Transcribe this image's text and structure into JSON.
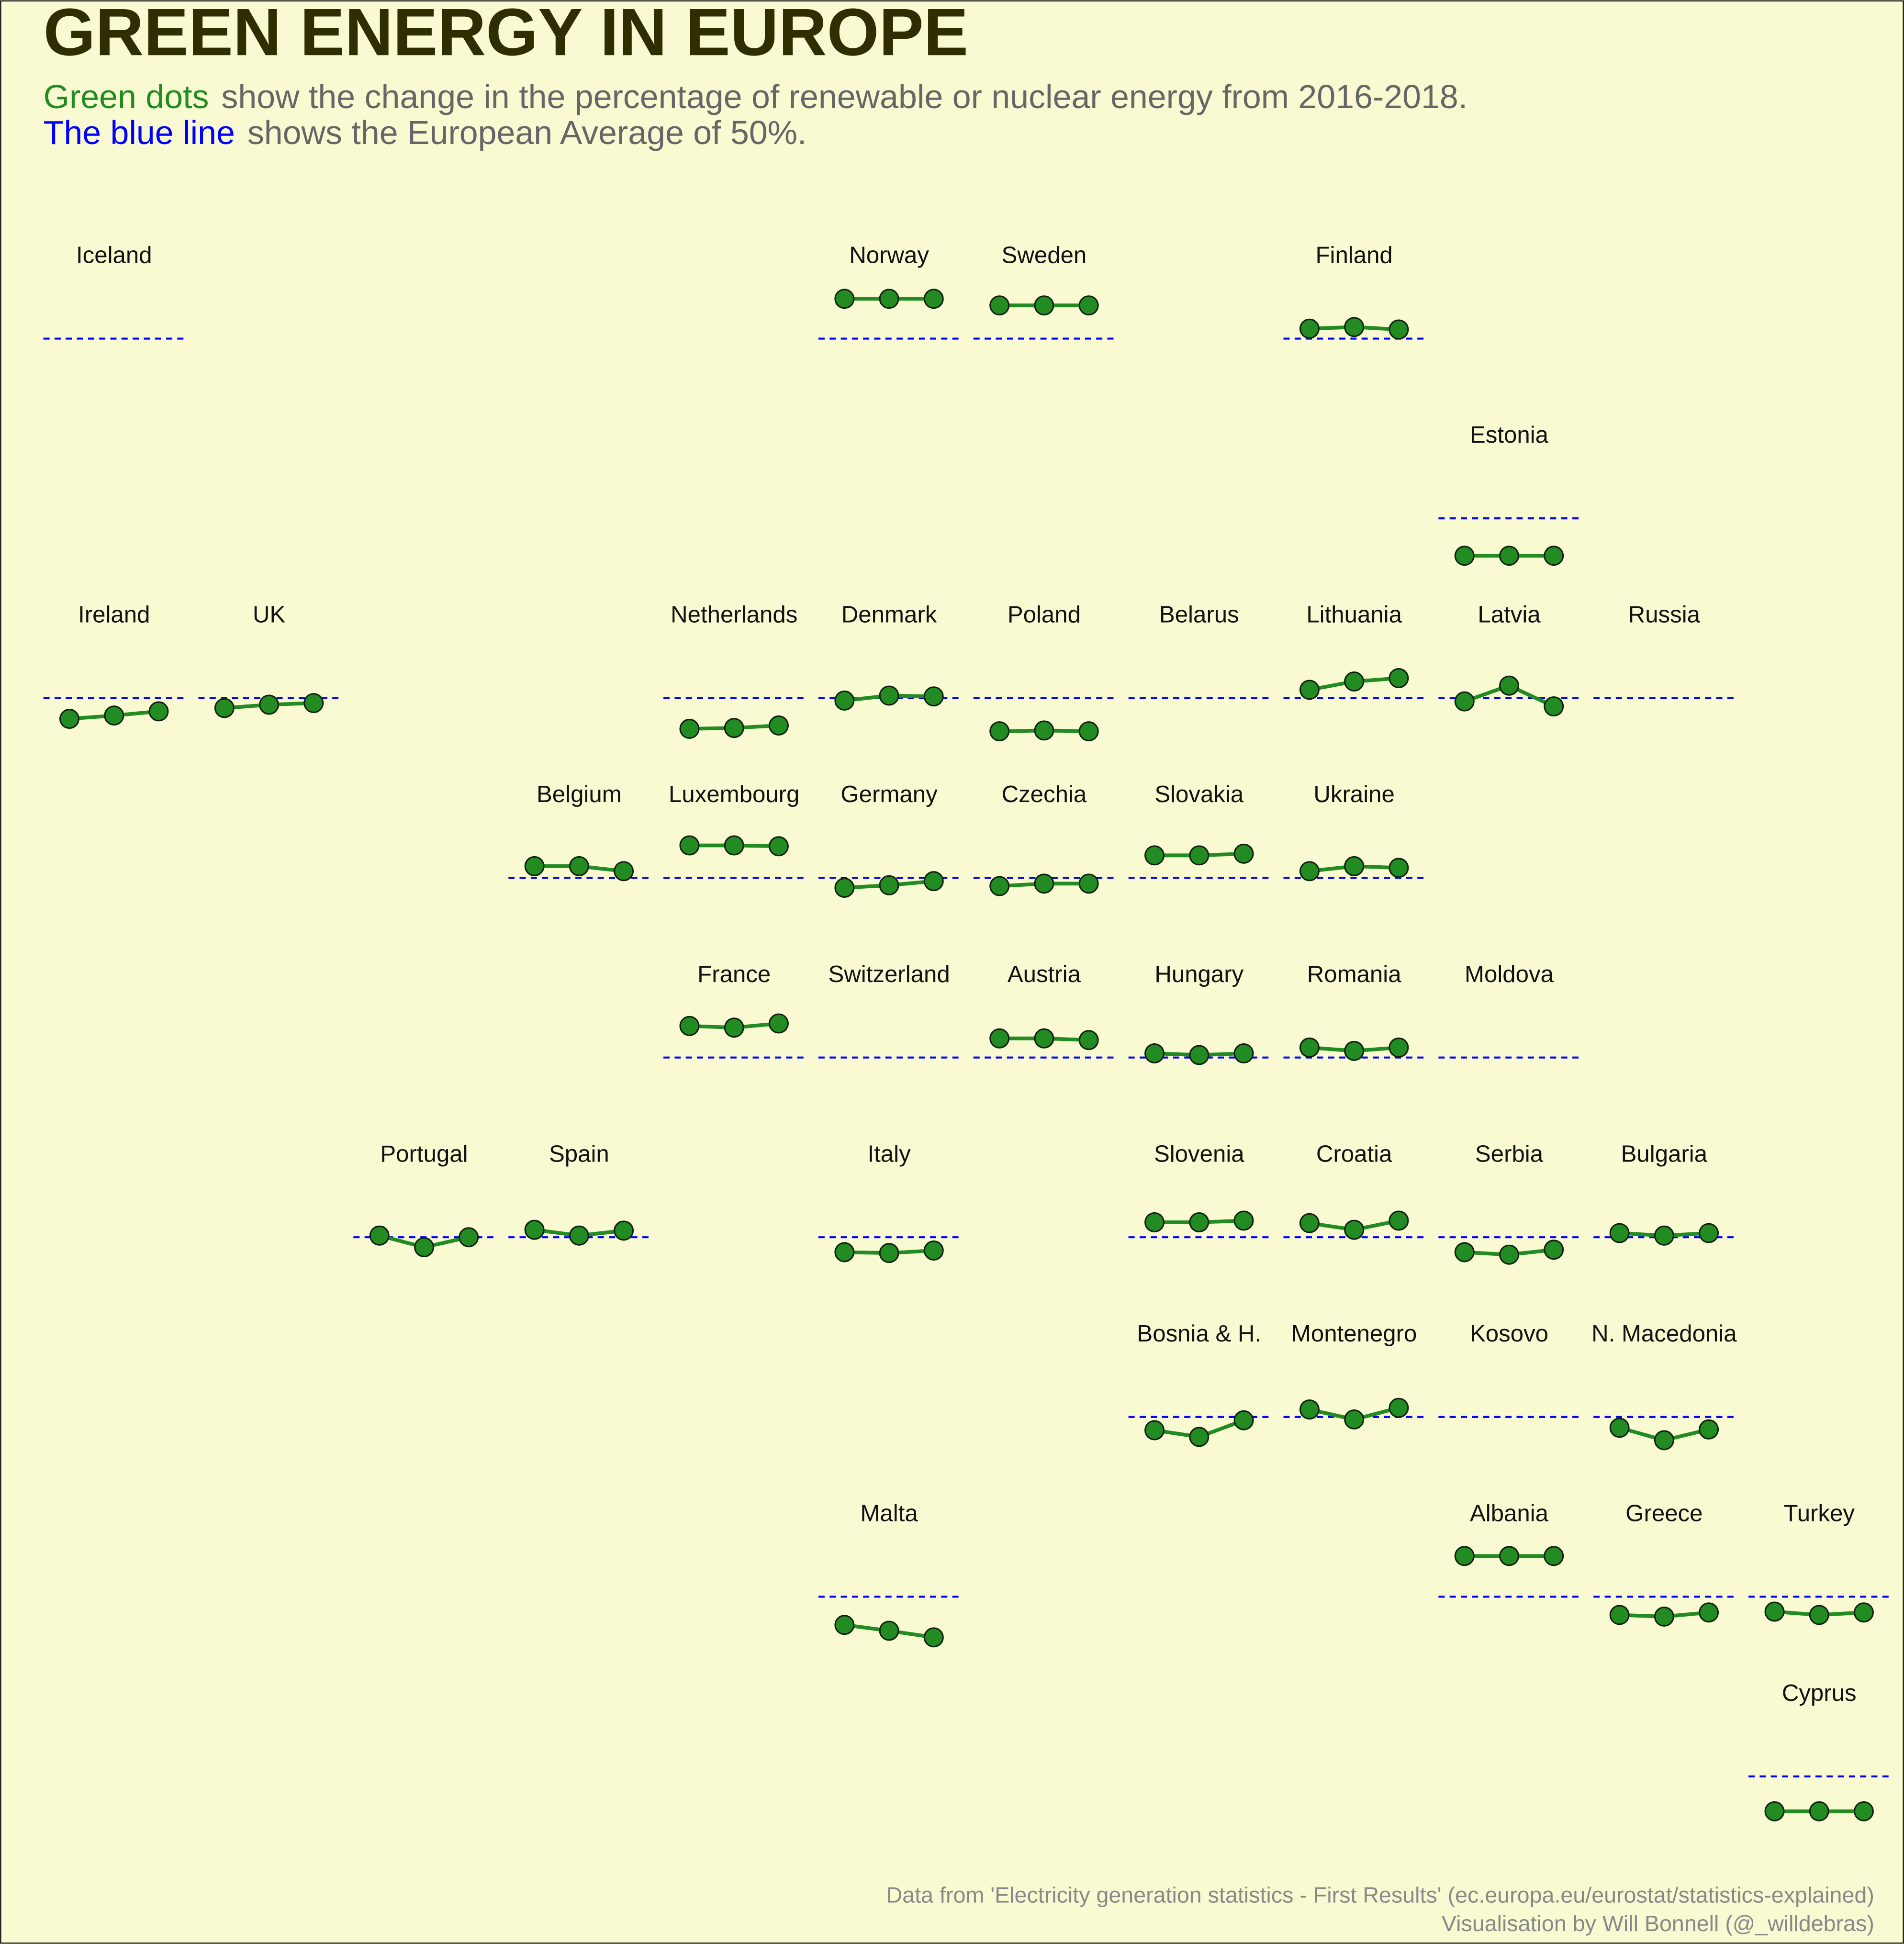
{
  "chart_data": {
    "type": "line",
    "title": "GREEN ENERGY IN EUROPE",
    "subtitle": [
      [
        {
          "text": "Green dots",
          "color": "#228b22"
        },
        {
          "text": "show the change in the percentage of renewable or nuclear energy from 2016-2018.",
          "color": "#666666"
        }
      ],
      [
        {
          "text": "The blue line",
          "color": "#0000ff"
        },
        {
          "text": "shows the European Average of 50%.",
          "color": "#666666"
        }
      ]
    ],
    "footer": [
      "Data from 'Electricity generation statistics - First Results' (ec.europa.eu/eurostat/statistics-explained)",
      "Visualisation by Will Bonnell (@_willdebras)"
    ],
    "color": "#228b22",
    "reference_value": 50,
    "reference_color": "#0000ff",
    "ylim": [
      0,
      100
    ],
    "series": [
      {
        "name": "Iceland",
        "values": [
          null,
          null,
          null
        ]
      },
      {
        "name": "Norway",
        "values": [
          98,
          98,
          98
        ]
      },
      {
        "name": "Sweden",
        "values": [
          90,
          90,
          90
        ]
      },
      {
        "name": "Finland",
        "values": [
          62,
          64,
          61
        ]
      },
      {
        "name": "Estonia",
        "values": [
          5,
          5,
          5
        ]
      },
      {
        "name": "Ireland",
        "values": [
          25,
          29,
          34
        ]
      },
      {
        "name": "UK",
        "values": [
          38,
          42,
          44
        ]
      },
      {
        "name": "Netherlands",
        "values": [
          13,
          14,
          17
        ]
      },
      {
        "name": "Denmark",
        "values": [
          47,
          53,
          52
        ]
      },
      {
        "name": "Poland",
        "values": [
          10,
          11,
          10
        ]
      },
      {
        "name": "Belarus",
        "values": [
          null,
          null,
          null
        ]
      },
      {
        "name": "Lithuania",
        "values": [
          60,
          70,
          74
        ]
      },
      {
        "name": "Latvia",
        "values": [
          46,
          65,
          40
        ]
      },
      {
        "name": "Russia",
        "values": [
          null,
          null,
          null
        ]
      },
      {
        "name": "Belgium",
        "values": [
          64,
          64,
          58
        ]
      },
      {
        "name": "Luxembourg",
        "values": [
          89,
          89,
          88
        ]
      },
      {
        "name": "Germany",
        "values": [
          38,
          41,
          46
        ]
      },
      {
        "name": "Czechia",
        "values": [
          40,
          43,
          43
        ]
      },
      {
        "name": "Slovakia",
        "values": [
          77,
          77,
          79
        ]
      },
      {
        "name": "Ukraine",
        "values": [
          58,
          64,
          62
        ]
      },
      {
        "name": "France",
        "values": [
          88,
          86,
          91
        ]
      },
      {
        "name": "Switzerland",
        "values": [
          null,
          null,
          null
        ]
      },
      {
        "name": "Austria",
        "values": [
          73,
          73,
          71
        ]
      },
      {
        "name": "Hungary",
        "values": [
          55,
          53,
          55
        ]
      },
      {
        "name": "Romania",
        "values": [
          62,
          58,
          62
        ]
      },
      {
        "name": "Moldova",
        "values": [
          null,
          null,
          null
        ]
      },
      {
        "name": "Portugal",
        "values": [
          52,
          38,
          50
        ]
      },
      {
        "name": "Spain",
        "values": [
          59,
          52,
          58
        ]
      },
      {
        "name": "Italy",
        "values": [
          32,
          31,
          34
        ]
      },
      {
        "name": "Slovenia",
        "values": [
          68,
          68,
          70
        ]
      },
      {
        "name": "Croatia",
        "values": [
          67,
          59,
          70
        ]
      },
      {
        "name": "Serbia",
        "values": [
          32,
          29,
          35
        ]
      },
      {
        "name": "Bulgaria",
        "values": [
          55,
          52,
          55
        ]
      },
      {
        "name": "Bosnia & H.",
        "values": [
          34,
          26,
          46
        ]
      },
      {
        "name": "Montenegro",
        "values": [
          59,
          47,
          61
        ]
      },
      {
        "name": "Kosovo",
        "values": [
          null,
          null,
          null
        ]
      },
      {
        "name": "N. Macedonia",
        "values": [
          37,
          22,
          35
        ]
      },
      {
        "name": "Malta",
        "values": [
          16,
          9,
          1
        ]
      },
      {
        "name": "Albania",
        "values": [
          99,
          99,
          99
        ]
      },
      {
        "name": "Greece",
        "values": [
          28,
          26,
          31
        ]
      },
      {
        "name": "Turkey",
        "values": [
          32,
          28,
          31
        ]
      },
      {
        "name": "Cyprus",
        "values": [
          8,
          8,
          8
        ]
      }
    ]
  }
}
